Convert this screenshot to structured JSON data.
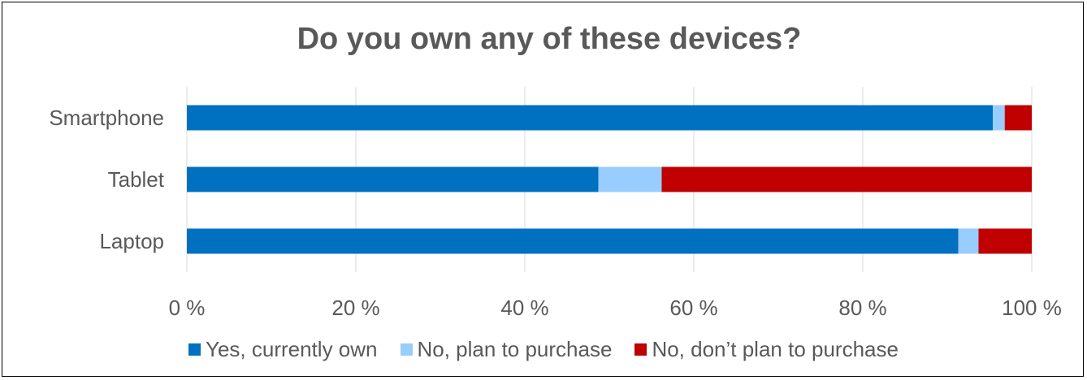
{
  "chart_data": {
    "type": "bar",
    "orientation": "horizontal",
    "stacked": "percent",
    "title": "Do you own any of these devices?",
    "categories": [
      "Smartphone",
      "Tablet",
      "Laptop"
    ],
    "series": [
      {
        "name": "Yes, currently own",
        "color": "#0070C0",
        "values": [
          95.4,
          48.7,
          91.3
        ]
      },
      {
        "name": "No, plan to purchase",
        "color": "#99CCFF",
        "values": [
          1.4,
          7.5,
          2.4
        ]
      },
      {
        "name": "No, don’t plan to purchase",
        "color": "#C00000",
        "values": [
          3.2,
          43.8,
          6.3
        ]
      }
    ],
    "xlim": [
      0,
      100
    ],
    "x_ticks": [
      "0 %",
      "20 %",
      "40 %",
      "60 %",
      "80 %",
      "100 %"
    ],
    "grid": "vertical",
    "legend_position": "bottom"
  }
}
